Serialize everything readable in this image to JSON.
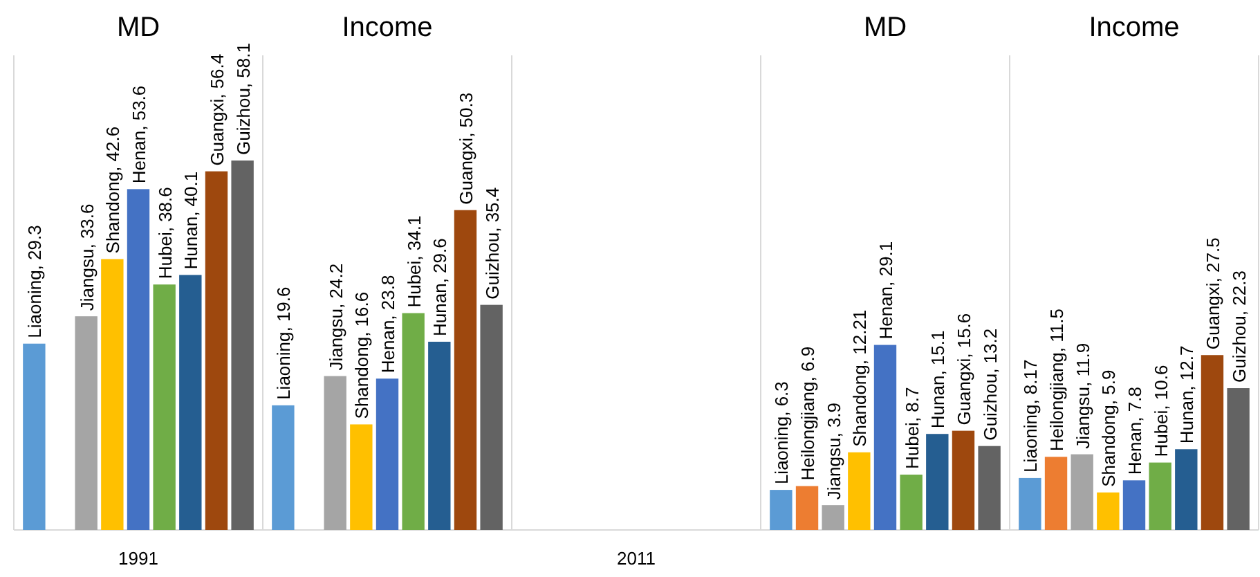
{
  "chart_data": {
    "type": "bar",
    "categories": [
      "MD",
      "Income",
      null,
      "MD",
      "Income"
    ],
    "series": [
      {
        "color": "#5b9bd5",
        "values": [
          29.3,
          19.6,
          null,
          6.3,
          8.17
        ],
        "value_labels": [
          "Liaoning, 29.3",
          "Liaoning, 19.6",
          null,
          "Liaoning, 6.3",
          "Liaoning, 8.17"
        ]
      },
      {
        "color": "#ed7d31",
        "values": [
          null,
          null,
          null,
          6.9,
          11.5
        ],
        "value_labels": [
          null,
          null,
          null,
          "Heilongjiang, 6.9",
          "Heilongjiang, 11.5"
        ]
      },
      {
        "color": "#a5a5a5",
        "values": [
          33.6,
          24.2,
          null,
          3.9,
          11.9
        ],
        "value_labels": [
          "Jiangsu, 33.6",
          "Jiangsu, 24.2",
          null,
          "Jiangsu, 3.9",
          "Jiangsu, 11.9"
        ]
      },
      {
        "color": "#ffc000",
        "values": [
          42.6,
          16.6,
          null,
          12.21,
          5.9
        ],
        "value_labels": [
          "Shandong, 42.6",
          "Shandong, 16.6",
          null,
          "Shandong, 12.21",
          "Shandong, 5.9"
        ]
      },
      {
        "color": "#4472c4",
        "values": [
          53.6,
          23.8,
          null,
          29.1,
          7.8
        ],
        "value_labels": [
          "Henan, 53.6",
          "Henan, 23.8",
          null,
          "Henan, 29.1",
          "Henan, 7.8"
        ]
      },
      {
        "color": "#70ad47",
        "values": [
          38.6,
          34.1,
          null,
          8.7,
          10.6
        ],
        "value_labels": [
          "Hubei, 38.6",
          "Hubei, 34.1",
          null,
          "Hubei, 8.7",
          "Hubei, 10.6"
        ]
      },
      {
        "color": "#255e91",
        "values": [
          40.1,
          29.6,
          null,
          15.1,
          12.7
        ],
        "value_labels": [
          "Hunan, 40.1",
          "Hunan, 29.6",
          null,
          "Hunan, 15.1",
          "Hunan, 12.7"
        ]
      },
      {
        "color": "#9e480e",
        "values": [
          56.4,
          50.3,
          null,
          15.6,
          27.5
        ],
        "value_labels": [
          "Guangxi, 56.4",
          "Guangxi, 50.3",
          null,
          "Guangxi, 15.6",
          "Guangxi, 27.5"
        ]
      },
      {
        "color": "#636363",
        "values": [
          58.1,
          35.4,
          null,
          13.2,
          22.3
        ],
        "value_labels": [
          "Guizhou, 58.1",
          "Guizhou, 35.4",
          null,
          "Guizhou, 13.2",
          "Guizhou, 22.3"
        ]
      }
    ],
    "annotations": [
      "1991",
      "2011"
    ],
    "grid": "x"
  }
}
